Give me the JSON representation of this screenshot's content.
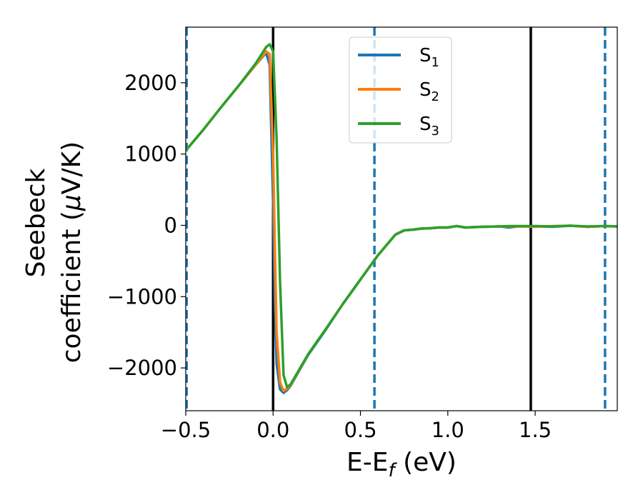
{
  "chart_data": {
    "type": "line",
    "xlabel": "E-E",
    "xlabel_sub": "f",
    "xlabel_unit": " (eV)",
    "ylabel_line1": "Seebeck",
    "ylabel_line2": "coefficient  (",
    "ylabel_mu": "μ",
    "ylabel_unit": "V/K)",
    "xlim": [
      -0.5,
      1.97
    ],
    "ylim": [
      -2600,
      2780
    ],
    "xticks": [
      -0.5,
      0.0,
      0.5,
      1.0,
      1.5
    ],
    "xtick_labels": [
      "−0.5",
      "0.0",
      "0.5",
      "1.0",
      "1.5"
    ],
    "yticks": [
      -2000,
      -1000,
      0,
      1000,
      2000
    ],
    "ytick_labels": [
      "−2000",
      "−1000",
      "0",
      "1000",
      "2000"
    ],
    "grid": false,
    "legend_position": "top-center",
    "vlines_solid": [
      0.0,
      1.475
    ],
    "vlines_dashed": [
      -0.495,
      0.58,
      1.9
    ],
    "series": [
      {
        "name": "S",
        "sub": "1",
        "color": "#1f77b4",
        "x": [
          -0.5,
          -0.4,
          -0.3,
          -0.2,
          -0.1,
          -0.04,
          -0.02,
          0.0,
          0.01,
          0.02,
          0.04,
          0.06,
          0.08,
          0.1,
          0.2,
          0.3,
          0.4,
          0.5,
          0.6,
          0.7,
          0.75,
          0.8,
          0.85,
          0.9,
          0.95,
          1.0,
          1.05,
          1.1,
          1.2,
          1.3,
          1.35,
          1.4,
          1.5,
          1.6,
          1.7,
          1.8,
          1.9,
          1.97
        ],
        "y": [
          1050,
          1340,
          1650,
          1950,
          2250,
          2420,
          2250,
          300,
          -1100,
          -1950,
          -2300,
          -2350,
          -2310,
          -2250,
          -1820,
          -1470,
          -1100,
          -760,
          -420,
          -130,
          -70,
          -60,
          -45,
          -40,
          -30,
          -30,
          -10,
          -30,
          -20,
          -15,
          -30,
          -15,
          -15,
          -20,
          -5,
          -20,
          -10,
          -15
        ]
      },
      {
        "name": "S",
        "sub": "2",
        "color": "#ff7f0e",
        "x": [
          -0.5,
          -0.4,
          -0.3,
          -0.2,
          -0.1,
          -0.04,
          -0.02,
          0.0,
          0.01,
          0.02,
          0.04,
          0.06,
          0.08,
          0.1,
          0.2,
          0.3,
          0.4,
          0.5,
          0.6,
          0.7,
          0.75,
          0.8,
          0.85,
          0.9,
          0.95,
          1.0,
          1.05,
          1.1,
          1.2,
          1.3,
          1.35,
          1.4,
          1.5,
          1.6,
          1.7,
          1.8,
          1.9,
          1.97
        ],
        "y": [
          1050,
          1340,
          1650,
          1950,
          2250,
          2440,
          2400,
          1000,
          -300,
          -1500,
          -2200,
          -2320,
          -2290,
          -2240,
          -1810,
          -1460,
          -1100,
          -760,
          -420,
          -130,
          -70,
          -60,
          -45,
          -40,
          -30,
          -30,
          -10,
          -30,
          -20,
          -15,
          -15,
          -15,
          -20,
          -10,
          -5,
          -20,
          -10,
          -15
        ]
      },
      {
        "name": "S",
        "sub": "3",
        "color": "#2ca02c",
        "x": [
          -0.5,
          -0.4,
          -0.3,
          -0.2,
          -0.1,
          -0.04,
          -0.02,
          0.0,
          0.02,
          0.04,
          0.06,
          0.08,
          0.1,
          0.2,
          0.3,
          0.4,
          0.5,
          0.6,
          0.7,
          0.75,
          0.8,
          0.85,
          0.9,
          0.95,
          1.0,
          1.05,
          1.1,
          1.2,
          1.3,
          1.35,
          1.4,
          1.5,
          1.6,
          1.7,
          1.8,
          1.9,
          1.97
        ],
        "y": [
          1050,
          1340,
          1650,
          1950,
          2270,
          2500,
          2540,
          2440,
          1200,
          -800,
          -2100,
          -2270,
          -2230,
          -1810,
          -1460,
          -1100,
          -760,
          -420,
          -130,
          -70,
          -60,
          -45,
          -40,
          -30,
          -30,
          -10,
          -30,
          -20,
          -15,
          -10,
          -10,
          -10,
          -15,
          -5,
          -15,
          -10,
          -15
        ]
      }
    ]
  }
}
